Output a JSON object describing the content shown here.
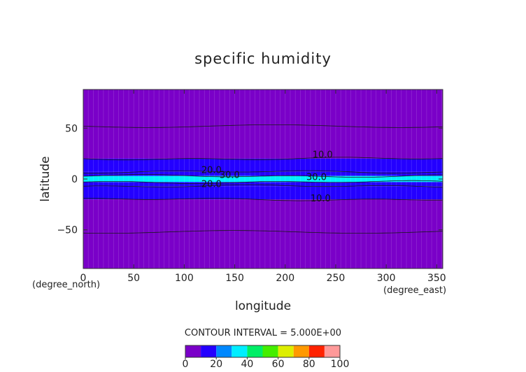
{
  "chart_data": {
    "type": "heatmap",
    "title": "specific humidity",
    "xlabel": "longitude",
    "ylabel": "latitude",
    "x_unit": "(degree_east)",
    "y_unit": "(degree_north)",
    "xlim": [
      0,
      356
    ],
    "ylim": [
      -88,
      88
    ],
    "x_ticks": [
      0,
      50,
      100,
      150,
      200,
      250,
      300,
      350
    ],
    "y_ticks": [
      50,
      0,
      -50
    ],
    "contour_interval_text": "CONTOUR INTERVAL = 5.000E+00",
    "colorbar": {
      "ticks": [
        0,
        20,
        40,
        60,
        80,
        100
      ],
      "levels": [
        0,
        10,
        20,
        30,
        40,
        50,
        60,
        70,
        80,
        90,
        100
      ],
      "colors": [
        "#7a00c8",
        "#2400ff",
        "#0088ff",
        "#00eeff",
        "#00ee66",
        "#44ee00",
        "#ddee00",
        "#ff9900",
        "#ff2200",
        "#ff9999"
      ]
    },
    "bands": [
      {
        "lat_top": 88,
        "lat_bottom": 20,
        "level": 5
      },
      {
        "lat_top": 20,
        "lat_bottom": 7,
        "level": 10
      },
      {
        "lat_top": 7,
        "lat_bottom": 3,
        "level": 15
      },
      {
        "lat_top": 3,
        "lat_bottom": -3,
        "level": 30
      },
      {
        "lat_top": -3,
        "lat_bottom": -7,
        "level": 15
      },
      {
        "lat_top": -7,
        "lat_bottom": -20,
        "level": 10
      },
      {
        "lat_top": -20,
        "lat_bottom": -88,
        "level": 5
      }
    ],
    "contour_labels": [
      {
        "text": "10.0",
        "lon": 237,
        "lat": 21
      },
      {
        "text": "20.0",
        "lon": 127,
        "lat": 6
      },
      {
        "text": "30.0",
        "lon": 145,
        "lat": 1
      },
      {
        "text": "30.0",
        "lon": 231,
        "lat": -1
      },
      {
        "text": "20.0",
        "lon": 127,
        "lat": -8
      },
      {
        "text": "10.0",
        "lon": 235,
        "lat": -22
      }
    ]
  }
}
